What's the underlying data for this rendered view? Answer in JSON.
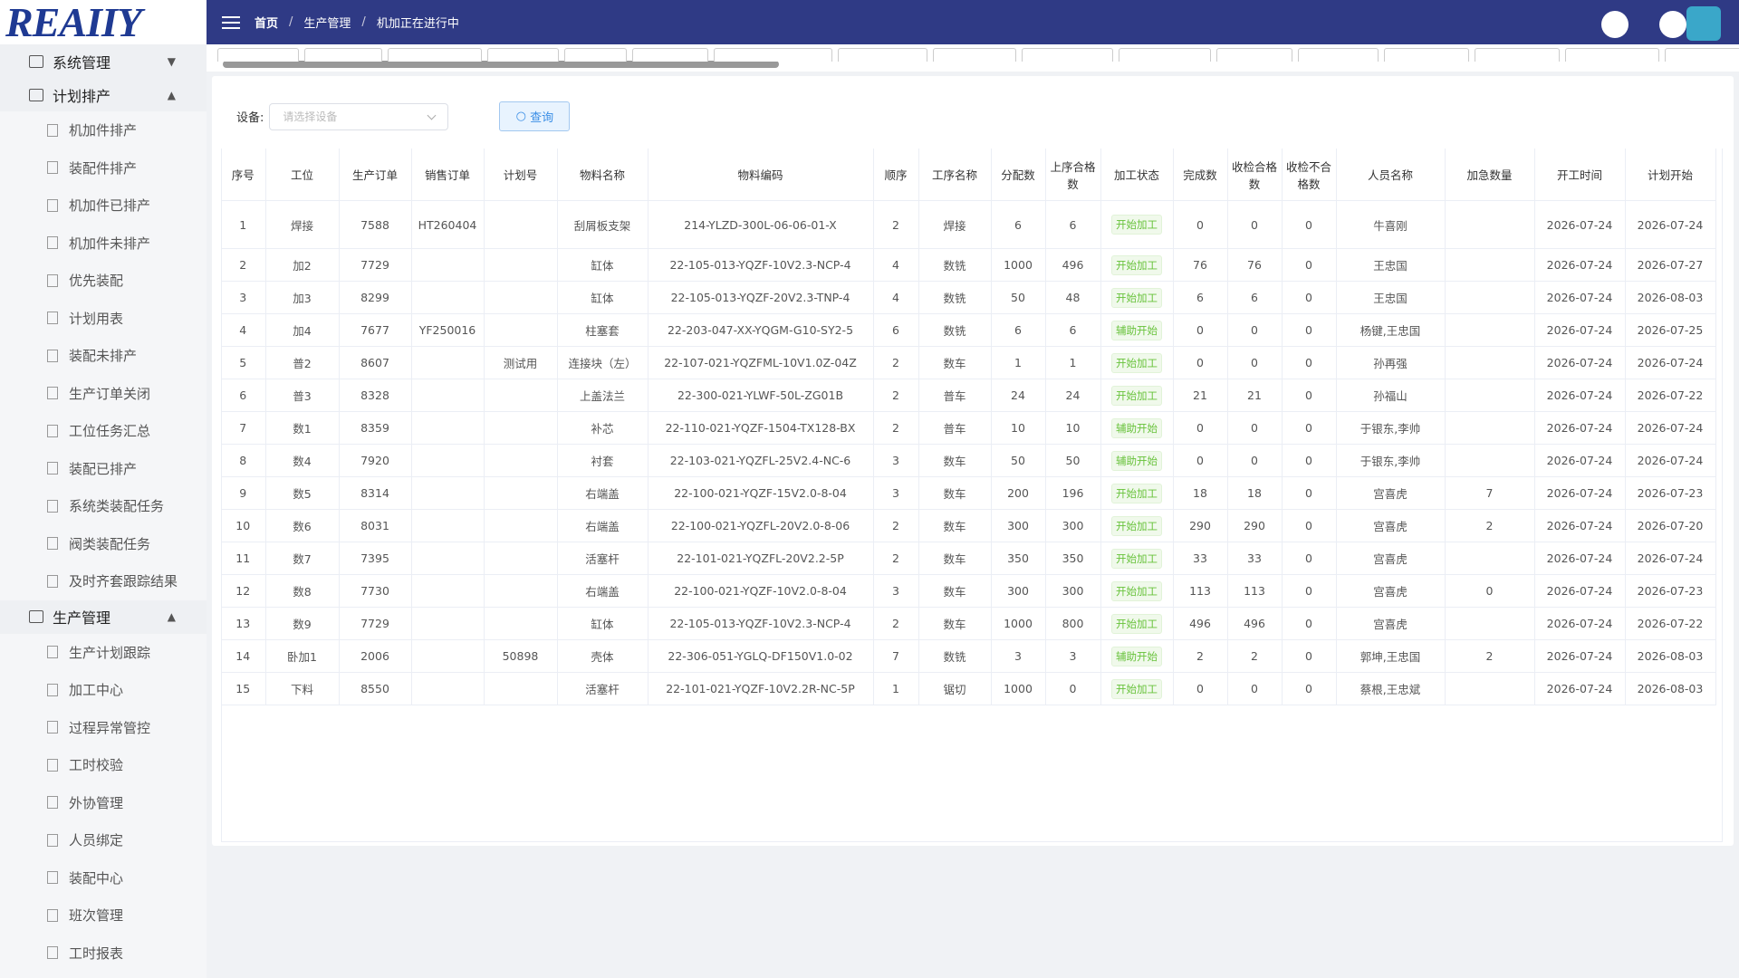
{
  "logo": "REAIIY",
  "breadcrumb": [
    "首页",
    "生产管理",
    "机加正在进行中"
  ],
  "sidebar": [
    {
      "label": "系统管理",
      "children": []
    },
    {
      "label": "计划排产",
      "children": [
        "机加件排产",
        "装配件排产",
        "机加件已排产",
        "机加件未排产",
        "优先装配",
        "计划用表",
        "装配未排产",
        "生产订单关闭",
        "工位任务汇总",
        "装配已排产",
        "系统类装配任务",
        "阀类装配任务",
        "及时齐套跟踪结果"
      ]
    },
    {
      "label": "生产管理",
      "children": [
        "生产计划跟踪",
        "加工中心",
        "过程异常管控",
        "工时校验",
        "外协管理",
        "人员绑定",
        "装配中心",
        "班次管理",
        "工时报表"
      ]
    }
  ],
  "filter": {
    "label": "设备:",
    "placeholder": "请选择设备",
    "button": "查询"
  },
  "table": {
    "headers": [
      "序号",
      "工位",
      "生产订单",
      "销售订单",
      "计划号",
      "物料名称",
      "物料编码",
      "顺序",
      "工序名称",
      "分配数",
      "上序合格数",
      "加工状态",
      "完成数",
      "收检合格数",
      "收检不合格数",
      "人员名称",
      "加急数量",
      "开工时间",
      "计划开始"
    ],
    "rows": [
      [
        "1",
        "焊接",
        "7588",
        "HT260404",
        null,
        "刮屑板支架",
        "214-YLZD-300L-06-06-01-X",
        "2",
        "焊接",
        "6",
        "6",
        "开始加工",
        "0",
        "0",
        "0",
        "牛喜刚",
        null,
        "2026-07-24",
        "2026-07-24"
      ],
      [
        "2",
        "加2",
        "7729",
        null,
        null,
        "缸体",
        "22-105-013-YQZF-10V2.3-NCP-4",
        "4",
        "数铣",
        "1000",
        "496",
        "开始加工",
        "76",
        "76",
        "0",
        "王忠国",
        null,
        "2026-07-24",
        "2026-07-27"
      ],
      [
        "3",
        "加3",
        "8299",
        null,
        null,
        "缸体",
        "22-105-013-YQZF-20V2.3-TNP-4",
        "4",
        "数铣",
        "50",
        "48",
        "开始加工",
        "6",
        "6",
        "0",
        "王忠国",
        null,
        "2026-07-24",
        "2026-08-03"
      ],
      [
        "4",
        "加4",
        "7677",
        "YF250016",
        null,
        "柱塞套",
        "22-203-047-XX-YQGM-G10-SY2-5",
        "6",
        "数铣",
        "6",
        "6",
        "辅助开始",
        "0",
        "0",
        "0",
        "杨键,王忠国",
        null,
        "2026-07-24",
        "2026-07-25"
      ],
      [
        "5",
        "普2",
        "8607",
        null,
        "测试用",
        "连接块（左）",
        "22-107-021-YQZFML-10V1.0Z-04Z",
        "2",
        "数车",
        "1",
        "1",
        "开始加工",
        "0",
        "0",
        "0",
        "孙再强",
        null,
        "2026-07-24",
        "2026-07-24"
      ],
      [
        "6",
        "普3",
        "8328",
        null,
        null,
        "上盖法兰",
        "22-300-021-YLWF-50L-ZG01B",
        "2",
        "普车",
        "24",
        "24",
        "开始加工",
        "21",
        "21",
        "0",
        "孙福山",
        null,
        "2026-07-24",
        "2026-07-22"
      ],
      [
        "7",
        "数1",
        "8359",
        null,
        null,
        "补芯",
        "22-110-021-YQZF-1504-TX128-BX",
        "2",
        "普车",
        "10",
        "10",
        "辅助开始",
        "0",
        "0",
        "0",
        "于银东,李帅",
        null,
        "2026-07-24",
        "2026-07-24"
      ],
      [
        "8",
        "数4",
        "7920",
        null,
        null,
        "衬套",
        "22-103-021-YQZFL-25V2.4-NC-6",
        "3",
        "数车",
        "50",
        "50",
        "辅助开始",
        "0",
        "0",
        "0",
        "于银东,李帅",
        null,
        "2026-07-24",
        "2026-07-24"
      ],
      [
        "9",
        "数5",
        "8314",
        null,
        null,
        "右端盖",
        "22-100-021-YQZF-15V2.0-8-04",
        "3",
        "数车",
        "200",
        "196",
        "开始加工",
        "18",
        "18",
        "0",
        "宫喜虎",
        "7",
        "2026-07-24",
        "2026-07-23"
      ],
      [
        "10",
        "数6",
        "8031",
        null,
        null,
        "右端盖",
        "22-100-021-YQZFL-20V2.0-8-06",
        "2",
        "数车",
        "300",
        "300",
        "开始加工",
        "290",
        "290",
        "0",
        "宫喜虎",
        "2",
        "2026-07-24",
        "2026-07-20"
      ],
      [
        "11",
        "数7",
        "7395",
        null,
        null,
        "活塞杆",
        "22-101-021-YQZFL-20V2.2-5P",
        "2",
        "数车",
        "350",
        "350",
        "开始加工",
        "33",
        "33",
        "0",
        "宫喜虎",
        null,
        "2026-07-24",
        "2026-07-24"
      ],
      [
        "12",
        "数8",
        "7730",
        null,
        null,
        "右端盖",
        "22-100-021-YQZF-10V2.0-8-04",
        "3",
        "数车",
        "300",
        "300",
        "开始加工",
        "113",
        "113",
        "0",
        "宫喜虎",
        "0",
        "2026-07-24",
        "2026-07-23"
      ],
      [
        "13",
        "数9",
        "7729",
        null,
        null,
        "缸体",
        "22-105-013-YQZF-10V2.3-NCP-4",
        "2",
        "数车",
        "1000",
        "800",
        "开始加工",
        "496",
        "496",
        "0",
        "宫喜虎",
        null,
        "2026-07-24",
        "2026-07-22"
      ],
      [
        "14",
        "卧加1",
        "2006",
        null,
        "50898",
        "壳体",
        "22-306-051-YGLQ-DF150V1.0-02",
        "7",
        "数铣",
        "3",
        "3",
        "辅助开始",
        "2",
        "2",
        "0",
        "郭坤,王忠国",
        "2",
        "2026-07-24",
        "2026-08-03"
      ],
      [
        "15",
        "下料",
        "8550",
        null,
        null,
        "活塞杆",
        "22-101-021-YQZF-10V2.2R-NC-5P",
        "1",
        "锯切",
        "1000",
        "0",
        "开始加工",
        "0",
        "0",
        "0",
        "蔡根,王忠斌",
        null,
        "2026-07-24",
        "2026-08-03"
      ]
    ]
  }
}
